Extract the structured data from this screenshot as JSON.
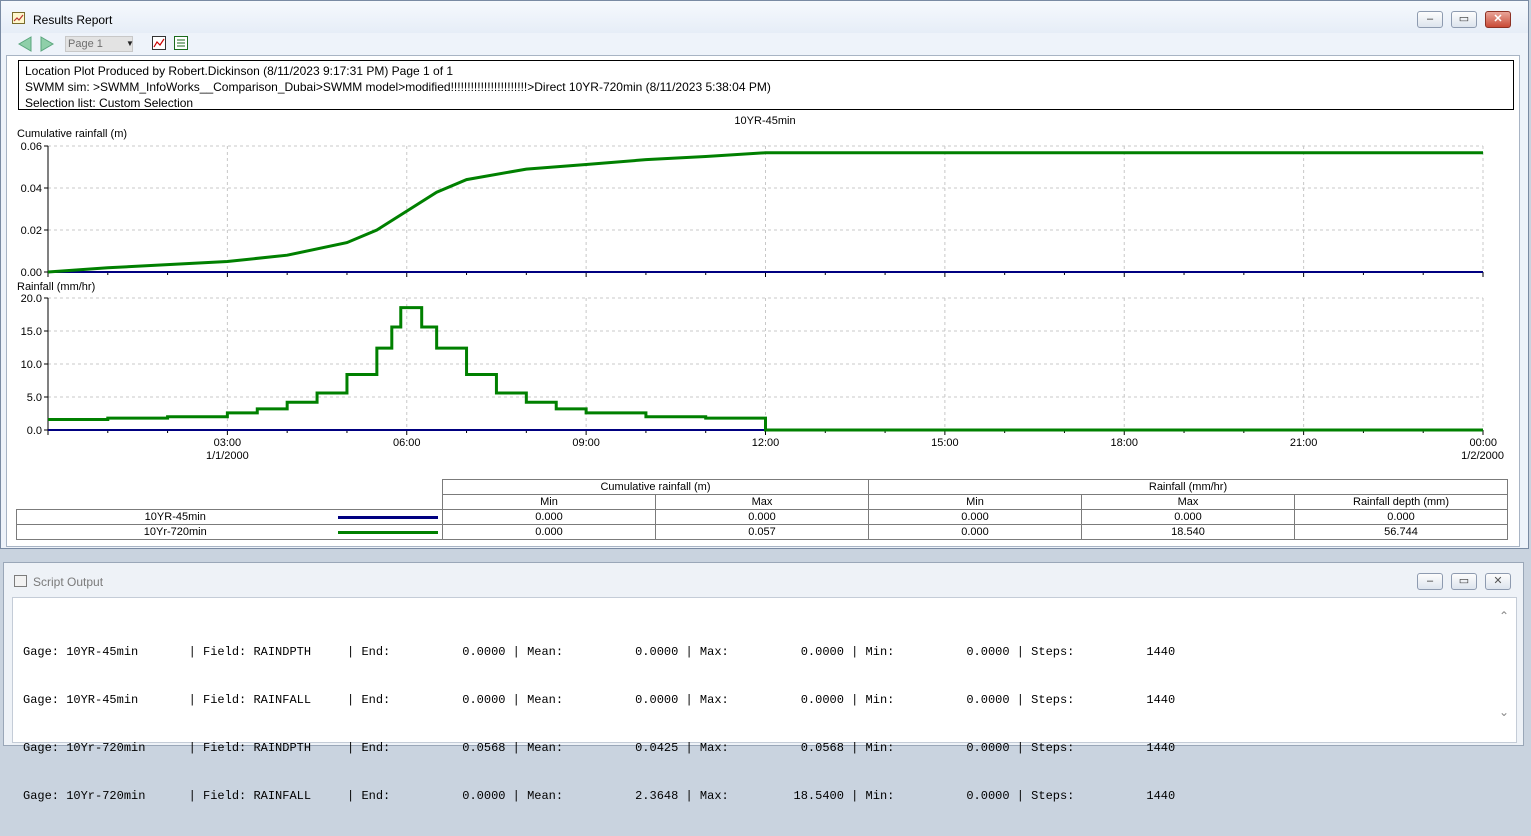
{
  "report_window": {
    "title": "Results Report",
    "page_select": "Page 1",
    "header_lines": [
      "Location Plot Produced by Robert.Dickinson (8/11/2023 9:17:31 PM) Page 1 of 1",
      "SWMM sim: >SWMM_InfoWorks__Comparison_Dubai>SWMM model>modified!!!!!!!!!!!!!!!!!!!!!!!>Direct 10YR-720min (8/11/2023 5:38:04 PM)",
      "Selection list: Custom Selection"
    ]
  },
  "chart_data": [
    {
      "type": "line",
      "title": "10YR-45min",
      "ylabel": "Cumulative rainfall (m)",
      "ylim": [
        0,
        0.06
      ],
      "yticks": [
        "0.00",
        "0.02",
        "0.04",
        "0.06"
      ],
      "xlim": [
        0,
        24
      ],
      "grid": true,
      "series": [
        {
          "name": "10YR-45min",
          "color": "#000080",
          "x": [
            0,
            24
          ],
          "y": [
            0,
            0
          ]
        },
        {
          "name": "10Yr-720min",
          "color": "#008000",
          "x": [
            0,
            1,
            2,
            3,
            4,
            5,
            5.5,
            6,
            6.5,
            7,
            8,
            9,
            10,
            11,
            12,
            24
          ],
          "y": [
            0,
            0.002,
            0.0035,
            0.005,
            0.008,
            0.014,
            0.02,
            0.029,
            0.038,
            0.044,
            0.049,
            0.0512,
            0.0535,
            0.055,
            0.0568,
            0.0568
          ]
        }
      ]
    },
    {
      "type": "line",
      "ylabel": "Rainfall (mm/hr)",
      "ylim": [
        0,
        20
      ],
      "yticks": [
        "0.0",
        "5.0",
        "10.0",
        "15.0",
        "20.0"
      ],
      "xlim": [
        0,
        24
      ],
      "grid": true,
      "x_ticks": [
        {
          "t": 3,
          "line1": "03:00",
          "line2": "1/1/2000"
        },
        {
          "t": 6,
          "line1": "06:00",
          "line2": ""
        },
        {
          "t": 9,
          "line1": "09:00",
          "line2": ""
        },
        {
          "t": 12,
          "line1": "12:00",
          "line2": ""
        },
        {
          "t": 15,
          "line1": "15:00",
          "line2": ""
        },
        {
          "t": 18,
          "line1": "18:00",
          "line2": ""
        },
        {
          "t": 21,
          "line1": "21:00",
          "line2": ""
        },
        {
          "t": 24,
          "line1": "00:00",
          "line2": "1/2/2000"
        }
      ],
      "series": [
        {
          "name": "10YR-45min",
          "color": "#000080",
          "x": [
            0,
            24
          ],
          "y": [
            0,
            0
          ]
        },
        {
          "name": "10Yr-720min",
          "color": "#008000",
          "x": [
            0,
            1,
            2,
            3,
            3.5,
            4,
            4.5,
            5,
            5.5,
            5.75,
            5.9,
            6.1,
            6.25,
            6.5,
            7,
            7.5,
            8,
            8.5,
            9,
            10,
            11,
            12,
            12,
            24
          ],
          "y": [
            1.6,
            1.8,
            2.0,
            2.6,
            3.2,
            4.2,
            5.6,
            8.4,
            12.4,
            15.6,
            18.54,
            18.54,
            15.6,
            12.4,
            8.4,
            5.6,
            4.2,
            3.2,
            2.6,
            2.0,
            1.8,
            1.6,
            0,
            0
          ]
        }
      ]
    }
  ],
  "stats_table": {
    "group1": "Cumulative rainfall (m)",
    "group2": "Rainfall (mm/hr)",
    "columns": [
      "Min",
      "Max",
      "Min",
      "Max",
      "Rainfall depth (mm)"
    ],
    "rows": [
      {
        "name": "10YR-45min",
        "color": "#000080",
        "values": [
          "0.000",
          "0.000",
          "0.000",
          "0.000",
          "0.000"
        ]
      },
      {
        "name": "10Yr-720min",
        "color": "#008000",
        "values": [
          "0.000",
          "0.057",
          "0.000",
          "18.540",
          "56.744"
        ]
      }
    ]
  },
  "script_window": {
    "title": "Script Output",
    "lines": [
      "Gage: 10YR-45min       | Field: RAINDPTH     | End:          0.0000 | Mean:          0.0000 | Max:          0.0000 | Min:          0.0000 | Steps:          1440",
      "Gage: 10YR-45min       | Field: RAINFALL     | End:          0.0000 | Mean:          0.0000 | Max:          0.0000 | Min:          0.0000 | Steps:          1440",
      "Gage: 10Yr-720min      | Field: RAINDPTH     | End:          0.0568 | Mean:          0.0425 | Max:          0.0568 | Min:          0.0000 | Steps:          1440",
      "Gage: 10Yr-720min      | Field: RAINFALL     | End:          0.0000 | Mean:          2.3648 | Max:         18.5400 | Min:          0.0000 | Steps:          1440"
    ]
  },
  "icons": {
    "back": "back-arrow-icon",
    "forward": "forward-arrow-icon",
    "chart": "chart-icon",
    "table": "table-icon",
    "minimize": "minimize-icon",
    "restore": "restore-icon",
    "close": "close-icon"
  }
}
